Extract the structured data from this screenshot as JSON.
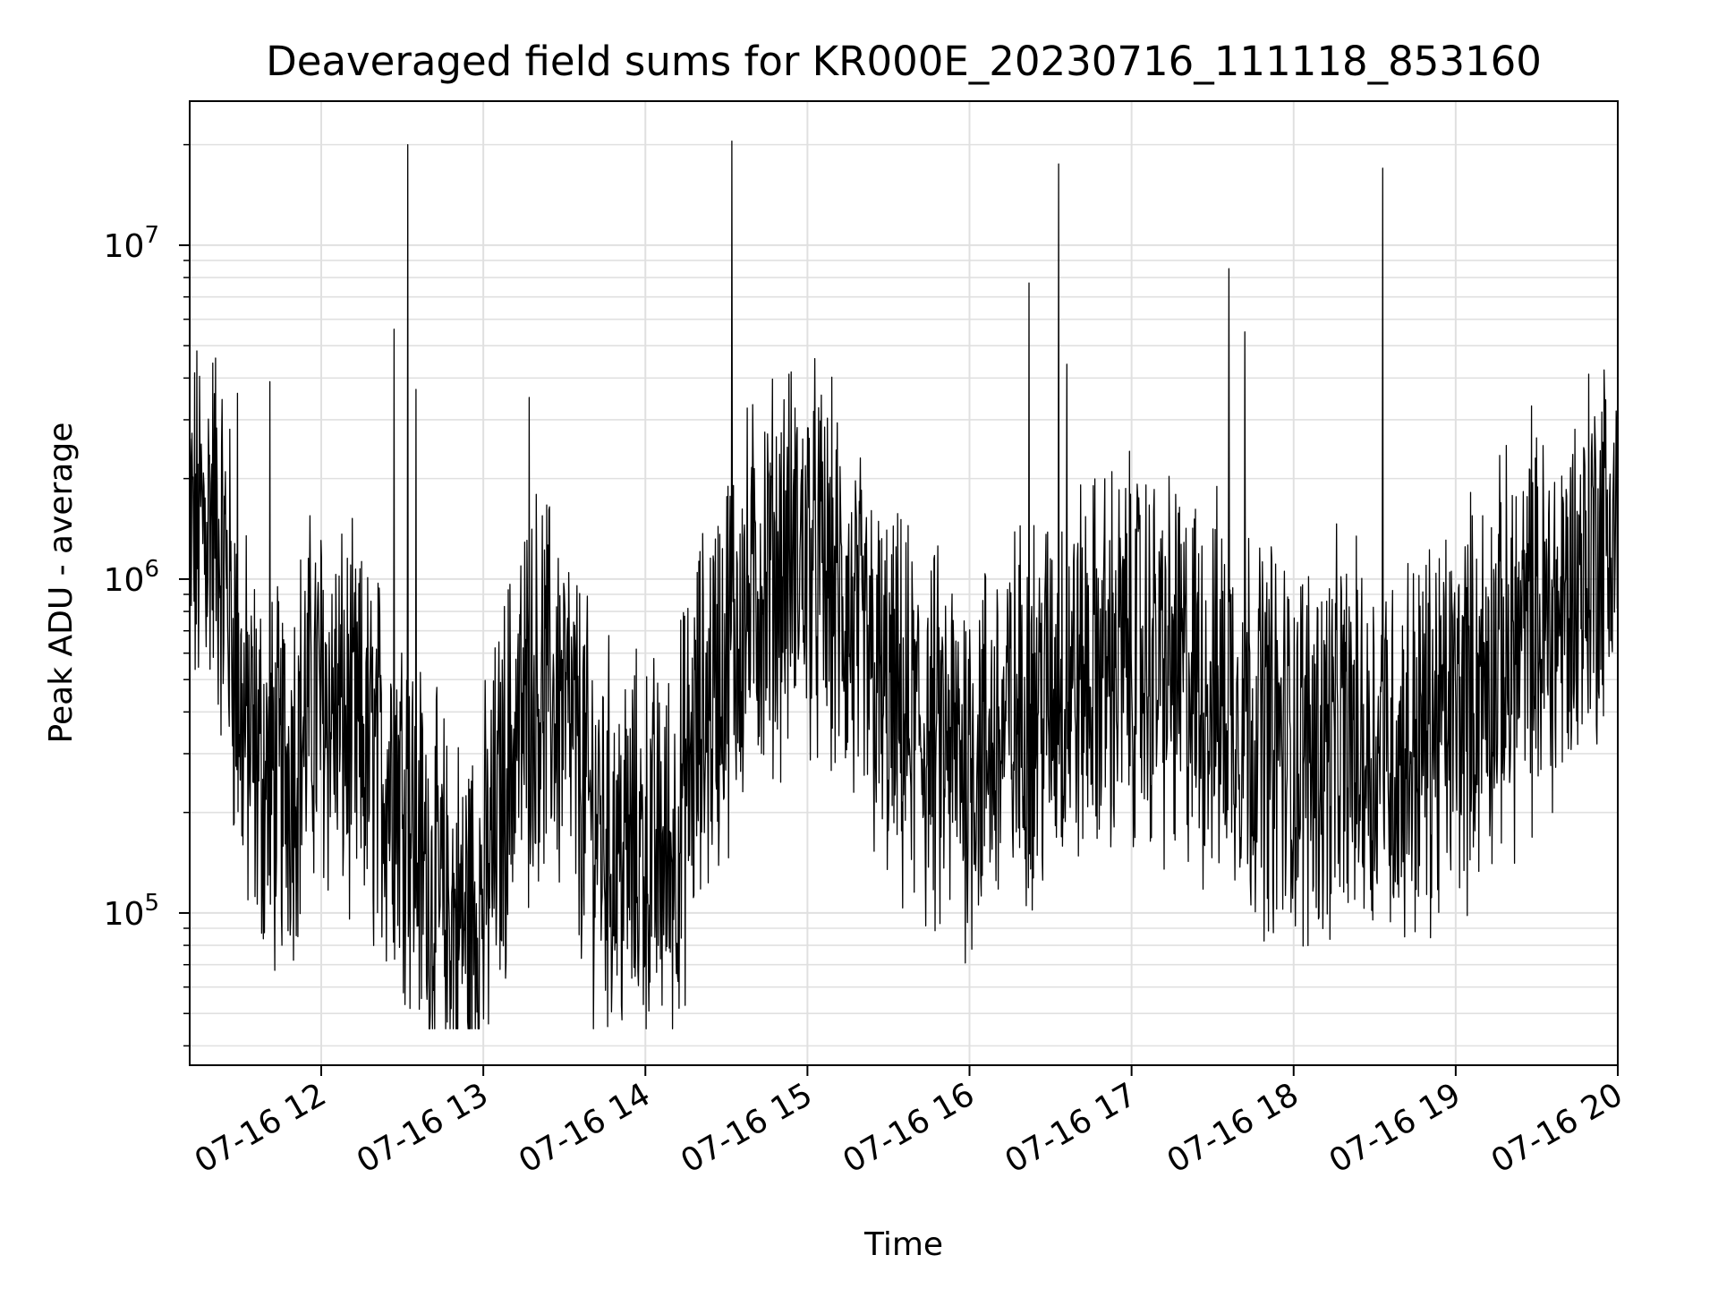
{
  "chart_data": {
    "type": "line",
    "title": "Deaveraged field sums for KR000E_20230716_111118_853160",
    "xlabel": "Time",
    "ylabel": "Peak ADU - average",
    "yscale": "log",
    "ylim": [
      35000,
      27000000
    ],
    "xlim": [
      "2023-07-16 11:11:18",
      "2023-07-16 20:00:00"
    ],
    "grid": true,
    "line_color": "#000000",
    "grid_color": "#e0e0e0",
    "x_ticks": [
      {
        "time": "2023-07-16 12:00",
        "label": "07-16 12"
      },
      {
        "time": "2023-07-16 13:00",
        "label": "07-16 13"
      },
      {
        "time": "2023-07-16 14:00",
        "label": "07-16 14"
      },
      {
        "time": "2023-07-16 15:00",
        "label": "07-16 15"
      },
      {
        "time": "2023-07-16 16:00",
        "label": "07-16 16"
      },
      {
        "time": "2023-07-16 17:00",
        "label": "07-16 17"
      },
      {
        "time": "2023-07-16 18:00",
        "label": "07-16 18"
      },
      {
        "time": "2023-07-16 19:00",
        "label": "07-16 19"
      },
      {
        "time": "2023-07-16 20:00",
        "label": "07-16 20"
      }
    ],
    "y_ticks": [
      {
        "value": 100000,
        "base": "10",
        "exp": "5"
      },
      {
        "value": 1000000,
        "base": "10",
        "exp": "6"
      },
      {
        "value": 10000000,
        "base": "10",
        "exp": "7"
      }
    ],
    "series": [
      {
        "x": [
          "2023-07-16 11:12",
          "2023-07-16 11:15",
          "2023-07-16 11:20",
          "2023-07-16 11:25",
          "2023-07-16 11:30",
          "2023-07-16 11:35",
          "2023-07-16 11:40",
          "2023-07-16 11:45",
          "2023-07-16 11:50",
          "2023-07-16 11:55",
          "2023-07-16 12:00",
          "2023-07-16 12:10",
          "2023-07-16 12:20",
          "2023-07-16 12:30",
          "2023-07-16 12:40",
          "2023-07-16 12:50",
          "2023-07-16 13:00",
          "2023-07-16 13:10",
          "2023-07-16 13:20",
          "2023-07-16 13:30",
          "2023-07-16 13:40",
          "2023-07-16 13:50",
          "2023-07-16 14:00",
          "2023-07-16 14:10",
          "2023-07-16 14:20",
          "2023-07-16 14:30",
          "2023-07-16 14:40",
          "2023-07-16 14:50",
          "2023-07-16 15:00",
          "2023-07-16 15:10",
          "2023-07-16 15:20",
          "2023-07-16 15:30",
          "2023-07-16 15:40",
          "2023-07-16 15:50",
          "2023-07-16 16:00",
          "2023-07-16 16:10",
          "2023-07-16 16:20",
          "2023-07-16 16:30",
          "2023-07-16 16:40",
          "2023-07-16 16:50",
          "2023-07-16 17:00",
          "2023-07-16 17:10",
          "2023-07-16 17:20",
          "2023-07-16 17:30",
          "2023-07-16 17:40",
          "2023-07-16 17:50",
          "2023-07-16 18:00",
          "2023-07-16 18:10",
          "2023-07-16 18:20",
          "2023-07-16 18:30",
          "2023-07-16 18:40",
          "2023-07-16 18:50",
          "2023-07-16 19:00",
          "2023-07-16 19:10",
          "2023-07-16 19:20",
          "2023-07-16 19:30",
          "2023-07-16 19:40",
          "2023-07-16 19:50",
          "2023-07-16 20:00"
        ],
        "y": [
          1300000,
          1400000,
          1600000,
          1000000,
          400000,
          300000,
          250000,
          250000,
          300000,
          400000,
          450000,
          350000,
          280000,
          250000,
          120000,
          90000,
          110000,
          300000,
          500000,
          400000,
          200000,
          150000,
          150000,
          150000,
          350000,
          600000,
          900000,
          1100000,
          1200000,
          900000,
          600000,
          400000,
          350000,
          300000,
          300000,
          320000,
          400000,
          450000,
          500000,
          550000,
          600000,
          550000,
          500000,
          450000,
          420000,
          350000,
          300000,
          320000,
          330000,
          300000,
          300000,
          350000,
          400000,
          500000,
          600000,
          700000,
          800000,
          1200000,
          1500000
        ]
      }
    ],
    "spikes": [
      {
        "time": "2023-07-16 11:29",
        "value": 3600000
      },
      {
        "time": "2023-07-16 11:41",
        "value": 3900000
      },
      {
        "time": "2023-07-16 12:27",
        "value": 5600000
      },
      {
        "time": "2023-07-16 12:32",
        "value": 20000000
      },
      {
        "time": "2023-07-16 12:35",
        "value": 3700000
      },
      {
        "time": "2023-07-16 13:17",
        "value": 3500000
      },
      {
        "time": "2023-07-16 14:32",
        "value": 20500000
      },
      {
        "time": "2023-07-16 16:22",
        "value": 7700000
      },
      {
        "time": "2023-07-16 16:33",
        "value": 17500000
      },
      {
        "time": "2023-07-16 16:36",
        "value": 4400000
      },
      {
        "time": "2023-07-16 17:36",
        "value": 8500000
      },
      {
        "time": "2023-07-16 17:42",
        "value": 5500000
      },
      {
        "time": "2023-07-16 18:33",
        "value": 17000000
      },
      {
        "time": "2023-07-16 19:28",
        "value": 3300000
      }
    ]
  }
}
